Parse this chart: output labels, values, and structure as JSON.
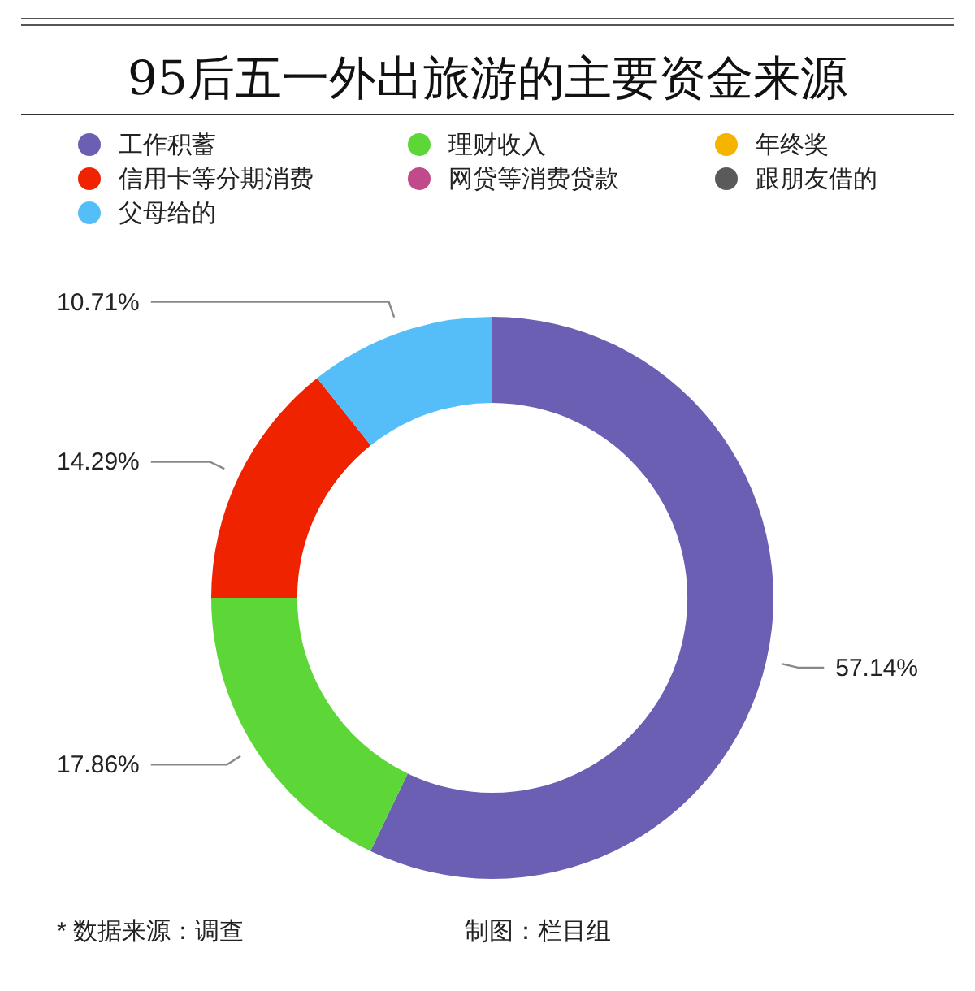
{
  "chart_data": {
    "type": "donut",
    "title": "95后五一外出旅游的主要资金来源",
    "categories": [
      "工作积蓄",
      "理财收入",
      "年终奖",
      "信用卡等分期消费",
      "网贷等消费贷款",
      "跟朋友借的",
      "父母给的"
    ],
    "values": [
      57.14,
      17.86,
      0,
      14.29,
      0,
      0,
      10.71
    ],
    "colors": [
      "#6a5fb3",
      "#5dd637",
      "#f5b400",
      "#f02300",
      "#c04a8a",
      "#5a5a5a",
      "#55bef9"
    ],
    "value_labels": [
      "57.14%",
      "17.86%",
      null,
      "14.29%",
      null,
      null,
      "10.71%"
    ],
    "legend": "top",
    "annotations": [
      "* 数据来源：调查",
      "制图：栏目组"
    ]
  }
}
